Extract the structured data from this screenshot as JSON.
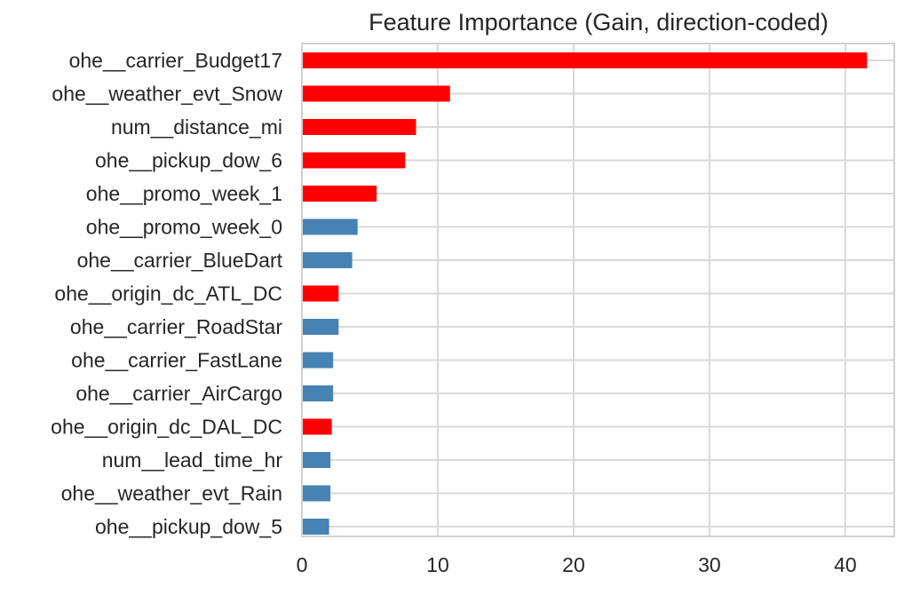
{
  "chart_data": {
    "type": "bar",
    "orientation": "horizontal",
    "title": "Feature Importance (Gain, direction-coded)",
    "xlabel": "",
    "ylabel": "",
    "xlim": [
      0,
      43.6
    ],
    "xticks": [
      0,
      10,
      20,
      30,
      40
    ],
    "grid": true,
    "legend": "none",
    "colors": {
      "positive": "#ff0000",
      "negative": "#4682b4",
      "grid": "#d9d9d9",
      "spine": "#d0d0d0",
      "text": "#262626"
    },
    "bars": [
      {
        "feature": "ohe__carrier_Budget17",
        "value": 41.6,
        "color": "#ff0000"
      },
      {
        "feature": "ohe__weather_evt_Snow",
        "value": 10.9,
        "color": "#ff0000"
      },
      {
        "feature": "num__distance_mi",
        "value": 8.4,
        "color": "#ff0000"
      },
      {
        "feature": "ohe__pickup_dow_6",
        "value": 7.6,
        "color": "#ff0000"
      },
      {
        "feature": "ohe__promo_week_1",
        "value": 5.5,
        "color": "#ff0000"
      },
      {
        "feature": "ohe__promo_week_0",
        "value": 4.1,
        "color": "#4682b4"
      },
      {
        "feature": "ohe__carrier_BlueDart",
        "value": 3.7,
        "color": "#4682b4"
      },
      {
        "feature": "ohe__origin_dc_ATL_DC",
        "value": 2.7,
        "color": "#ff0000"
      },
      {
        "feature": "ohe__carrier_RoadStar",
        "value": 2.7,
        "color": "#4682b4"
      },
      {
        "feature": "ohe__carrier_FastLane",
        "value": 2.3,
        "color": "#4682b4"
      },
      {
        "feature": "ohe__carrier_AirCargo",
        "value": 2.3,
        "color": "#4682b4"
      },
      {
        "feature": "ohe__origin_dc_DAL_DC",
        "value": 2.2,
        "color": "#ff0000"
      },
      {
        "feature": "num__lead_time_hr",
        "value": 2.1,
        "color": "#4682b4"
      },
      {
        "feature": "ohe__weather_evt_Rain",
        "value": 2.1,
        "color": "#4682b4"
      },
      {
        "feature": "ohe__pickup_dow_5",
        "value": 2.0,
        "color": "#4682b4"
      }
    ]
  }
}
